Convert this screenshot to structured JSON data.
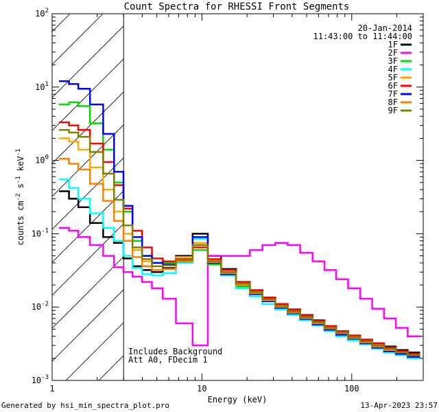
{
  "chart_data": {
    "type": "line",
    "title": "Count Spectra for RHESSI Front Segments",
    "xlabel": "Energy (keV)",
    "ylabel_parts": {
      "a": "counts cm",
      "b": "-2",
      "c": " s",
      "d": "-1",
      "e": " keV",
      "f": "-1"
    },
    "xscale": "log",
    "yscale": "log",
    "xlim": [
      1,
      300
    ],
    "ylim": [
      0.001,
      100
    ],
    "x_ticks": [
      {
        "value": 1,
        "label": "1"
      },
      {
        "value": 10,
        "label": "10"
      },
      {
        "value": 100,
        "label": "100"
      }
    ],
    "y_ticks": [
      {
        "value": 100,
        "base": "10",
        "exp": "2"
      },
      {
        "value": 10,
        "base": "10",
        "exp": "1"
      },
      {
        "value": 1,
        "base": "10",
        "exp": "0"
      },
      {
        "value": 0.1,
        "base": "10",
        "exp": "-1"
      },
      {
        "value": 0.01,
        "base": "10",
        "exp": "-2"
      },
      {
        "value": 0.001,
        "base": "10",
        "exp": "-3"
      }
    ],
    "date": "20-Jan-2014",
    "time_range": "11:43:00 to 11:44:00",
    "hatched_region_max_keV": 3,
    "annotation_lines": [
      "Includes Background",
      "Att A0, FDecim 1"
    ],
    "series": [
      {
        "name": "1F",
        "color": "#000000",
        "values": [
          0.38,
          0.3,
          0.23,
          0.14,
          0.09,
          0.075,
          0.046,
          0.036,
          0.032,
          0.03,
          0.034,
          0.05,
          0.1,
          0.05,
          0.033,
          0.022,
          0.017,
          0.0135,
          0.011,
          0.0093,
          0.0078,
          0.0066,
          0.0055,
          0.0047,
          0.0041,
          0.0036,
          0.0032,
          0.0029,
          0.0026,
          0.0024
        ]
      },
      {
        "name": "2F",
        "color": "#ff00ff",
        "values": [
          0.12,
          0.11,
          0.09,
          0.07,
          0.05,
          0.035,
          0.03,
          0.026,
          0.022,
          0.018,
          0.013,
          0.006,
          0.003,
          0.05,
          0.05,
          0.05,
          0.06,
          0.07,
          0.075,
          0.07,
          0.055,
          0.042,
          0.032,
          0.024,
          0.018,
          0.013,
          0.0095,
          0.007,
          0.0052,
          0.004
        ]
      },
      {
        "name": "3F",
        "color": "#00dd00",
        "values": [
          5.8,
          6.2,
          5.5,
          3.2,
          1.4,
          0.5,
          0.2,
          0.08,
          0.05,
          0.04,
          0.04,
          0.042,
          0.06,
          0.038,
          0.027,
          0.019,
          0.015,
          0.012,
          0.0097,
          0.0081,
          0.0068,
          0.0058,
          0.0049,
          0.0042,
          0.0036,
          0.0032,
          0.0028,
          0.0025,
          0.0023,
          0.0021
        ]
      },
      {
        "name": "4F",
        "color": "#00ffff",
        "values": [
          0.55,
          0.42,
          0.3,
          0.19,
          0.12,
          0.08,
          0.05,
          0.034,
          0.028,
          0.027,
          0.029,
          0.04,
          0.085,
          0.04,
          0.027,
          0.018,
          0.014,
          0.011,
          0.0093,
          0.0078,
          0.0066,
          0.0056,
          0.0047,
          0.004,
          0.0035,
          0.0031,
          0.0027,
          0.0024,
          0.0022,
          0.002
        ]
      },
      {
        "name": "5F",
        "color": "#ffaa00",
        "values": [
          2.0,
          1.8,
          1.4,
          0.8,
          0.4,
          0.2,
          0.1,
          0.06,
          0.042,
          0.036,
          0.038,
          0.048,
          0.075,
          0.043,
          0.03,
          0.021,
          0.016,
          0.0128,
          0.0104,
          0.0087,
          0.0073,
          0.0062,
          0.0052,
          0.0045,
          0.0039,
          0.0034,
          0.003,
          0.0027,
          0.0024,
          0.0022
        ]
      },
      {
        "name": "6F",
        "color": "#ff0000",
        "values": [
          3.3,
          3.0,
          2.6,
          1.7,
          0.95,
          0.46,
          0.22,
          0.11,
          0.065,
          0.046,
          0.042,
          0.045,
          0.065,
          0.045,
          0.032,
          0.022,
          0.017,
          0.0135,
          0.011,
          0.0092,
          0.0077,
          0.0065,
          0.0055,
          0.0047,
          0.0041,
          0.0036,
          0.0032,
          0.0028,
          0.0025,
          0.0023
        ]
      },
      {
        "name": "7F",
        "color": "#0000ff",
        "values": [
          12.0,
          11.0,
          9.5,
          5.8,
          2.3,
          0.7,
          0.24,
          0.09,
          0.05,
          0.04,
          0.038,
          0.042,
          0.09,
          0.04,
          0.028,
          0.02,
          0.015,
          0.012,
          0.0098,
          0.0082,
          0.0069,
          0.0058,
          0.0049,
          0.0042,
          0.0037,
          0.0032,
          0.0028,
          0.0025,
          0.0023,
          0.0021
        ]
      },
      {
        "name": "8F",
        "color": "#ff8000",
        "values": [
          1.05,
          0.9,
          0.75,
          0.48,
          0.28,
          0.15,
          0.08,
          0.048,
          0.036,
          0.032,
          0.033,
          0.042,
          0.07,
          0.041,
          0.029,
          0.02,
          0.0155,
          0.0124,
          0.0101,
          0.0084,
          0.0071,
          0.006,
          0.0051,
          0.0044,
          0.0038,
          0.0033,
          0.0029,
          0.0026,
          0.0024,
          0.0022
        ]
      },
      {
        "name": "9F",
        "color": "#808000",
        "values": [
          2.6,
          2.4,
          2.1,
          1.3,
          0.66,
          0.29,
          0.13,
          0.065,
          0.045,
          0.036,
          0.037,
          0.044,
          0.07,
          0.042,
          0.03,
          0.021,
          0.016,
          0.0128,
          0.0104,
          0.0087,
          0.0073,
          0.0062,
          0.0052,
          0.0045,
          0.0039,
          0.0034,
          0.003,
          0.0027,
          0.0024,
          0.0022
        ]
      }
    ],
    "energy_keV": [
      1.2,
      1.4,
      1.6,
      2.0,
      2.4,
      2.8,
      3.2,
      3.7,
      4.3,
      5.0,
      6.0,
      7.5,
      10.0,
      12,
      15,
      19,
      23,
      28,
      34,
      41,
      50,
      60,
      72,
      86,
      104,
      125,
      150,
      180,
      215,
      260
    ]
  },
  "footer": {
    "generated_by": "Generated by hsi_min_spectra_plot.pro",
    "timestamp": "13-Apr-2023 23:57"
  }
}
